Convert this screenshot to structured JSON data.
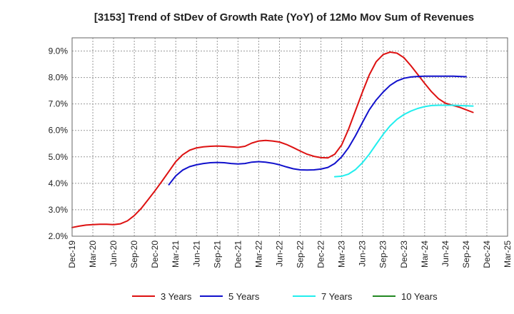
{
  "chart_data": {
    "type": "line",
    "title": "[3153]  Trend of StDev of Growth Rate (YoY) of 12Mo Mov Sum of Revenues",
    "xlabel": "",
    "ylabel": "",
    "ylim": [
      2.0,
      9.5
    ],
    "y_ticks": [
      2.0,
      3.0,
      4.0,
      5.0,
      6.0,
      7.0,
      8.0,
      9.0
    ],
    "y_tick_labels": [
      "2.0%",
      "3.0%",
      "4.0%",
      "5.0%",
      "6.0%",
      "7.0%",
      "8.0%",
      "9.0%"
    ],
    "x_tick_labels": [
      "Dec-19",
      "Mar-20",
      "Jun-20",
      "Sep-20",
      "Dec-20",
      "Mar-21",
      "Jun-21",
      "Sep-21",
      "Dec-21",
      "Mar-22",
      "Jun-22",
      "Sep-22",
      "Dec-22",
      "Mar-23",
      "Jun-23",
      "Sep-23",
      "Dec-23",
      "Mar-24",
      "Jun-24",
      "Sep-24",
      "Dec-24",
      "Mar-25"
    ],
    "grid": true,
    "legend_position": "bottom",
    "series": [
      {
        "name": "3 Years",
        "color": "#dd1111",
        "start_index": 0,
        "values": [
          2.33,
          2.38,
          2.42,
          2.44,
          2.45,
          2.45,
          2.44,
          2.47,
          2.58,
          2.78,
          3.05,
          3.38,
          3.72,
          4.08,
          4.45,
          4.82,
          5.08,
          5.25,
          5.34,
          5.38,
          5.4,
          5.41,
          5.4,
          5.38,
          5.36,
          5.4,
          5.52,
          5.6,
          5.62,
          5.6,
          5.56,
          5.47,
          5.35,
          5.22,
          5.1,
          5.02,
          4.97,
          4.96,
          5.1,
          5.45,
          6.05,
          6.75,
          7.45,
          8.1,
          8.6,
          8.87,
          8.96,
          8.92,
          8.75,
          8.45,
          8.12,
          7.78,
          7.46,
          7.2,
          7.03,
          6.95,
          6.88,
          6.78,
          6.68
        ]
      },
      {
        "name": "5 Years",
        "color": "#1111cc",
        "start_index": 14,
        "values": [
          3.95,
          4.28,
          4.5,
          4.63,
          4.7,
          4.75,
          4.78,
          4.79,
          4.78,
          4.75,
          4.73,
          4.75,
          4.8,
          4.82,
          4.8,
          4.76,
          4.7,
          4.62,
          4.55,
          4.51,
          4.5,
          4.51,
          4.54,
          4.6,
          4.75,
          5.0,
          5.35,
          5.8,
          6.3,
          6.78,
          7.15,
          7.45,
          7.7,
          7.87,
          7.97,
          8.02,
          8.04,
          8.05,
          8.05,
          8.05,
          8.05,
          8.05,
          8.04,
          8.03
        ]
      },
      {
        "name": "7 Years",
        "color": "#22eeee",
        "start_index": 38,
        "values": [
          4.25,
          4.27,
          4.35,
          4.52,
          4.78,
          5.1,
          5.48,
          5.85,
          6.17,
          6.42,
          6.6,
          6.73,
          6.83,
          6.9,
          6.94,
          6.95,
          6.95,
          6.95,
          6.94,
          6.93,
          6.92
        ]
      },
      {
        "name": "10 Years",
        "color": "#228822",
        "start_index": 0,
        "values": []
      }
    ]
  }
}
